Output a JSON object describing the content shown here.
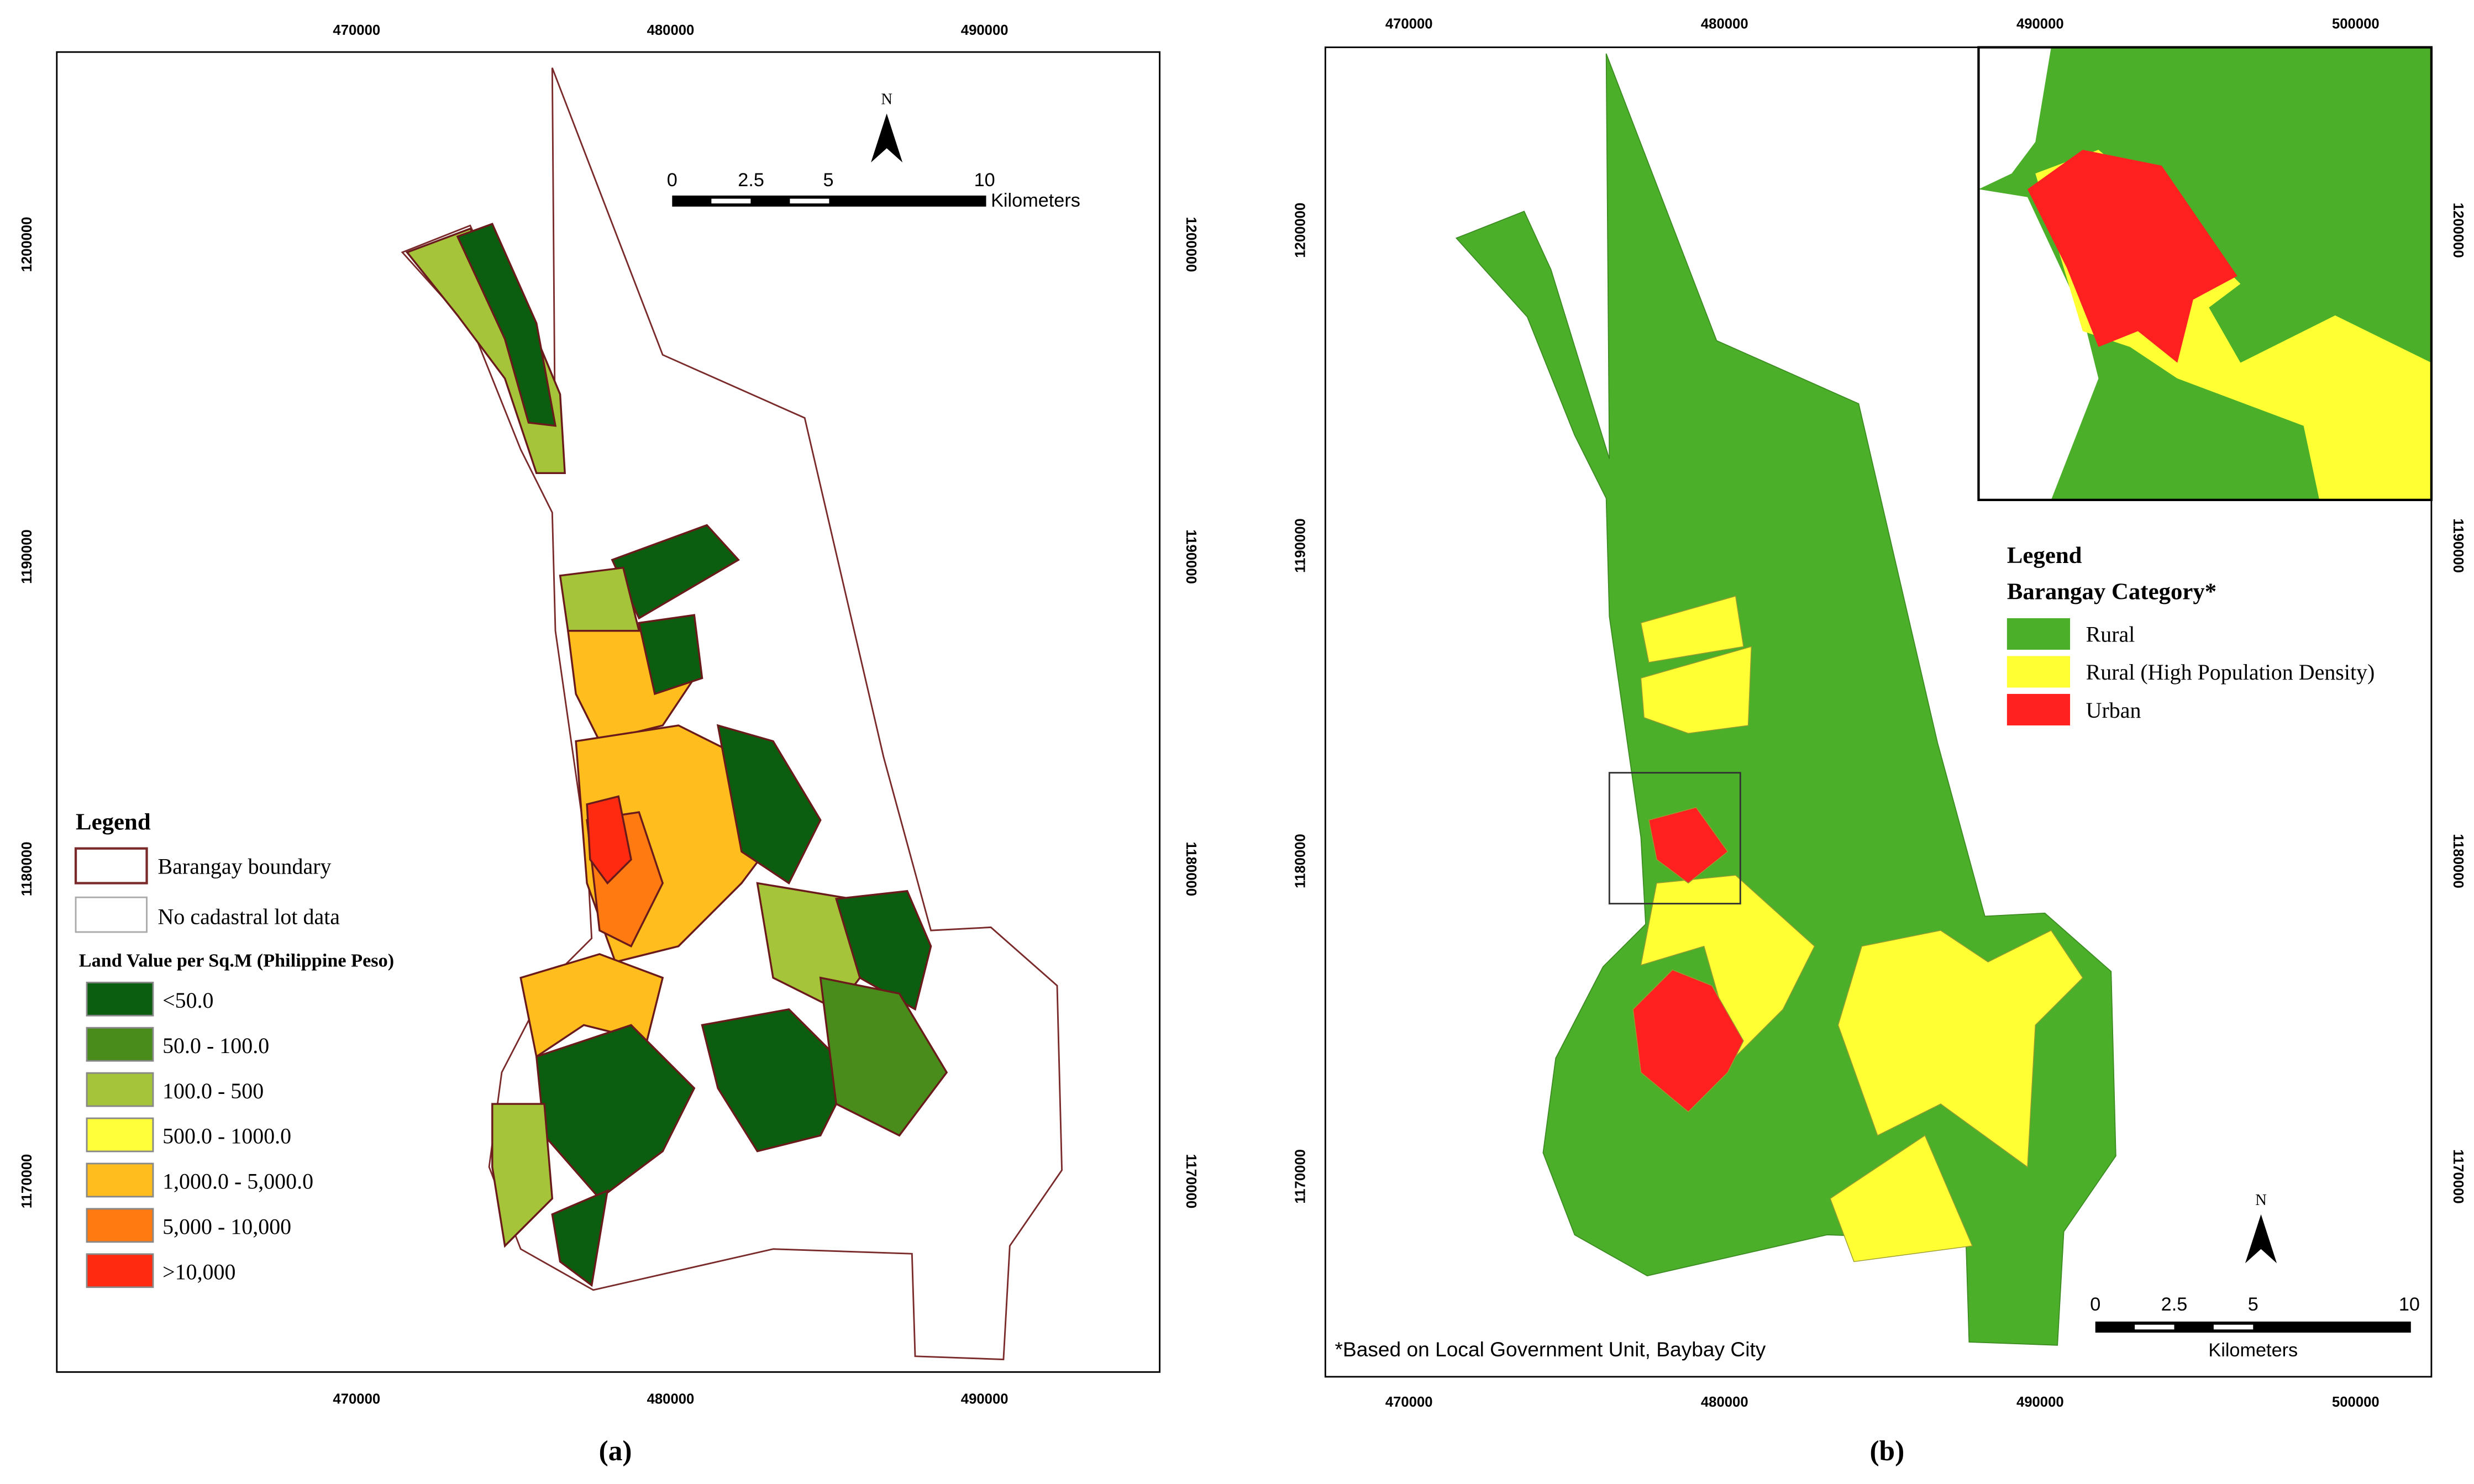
{
  "panel_a": {
    "x_ticks": [
      "470000",
      "480000",
      "490000"
    ],
    "y_ticks": [
      "1200000",
      "1190000",
      "1180000",
      "1170000"
    ],
    "legend": {
      "title": "Legend",
      "boundary": "Barangay boundary",
      "no_data": "No cadastral lot data",
      "subtitle": "Land Value per Sq.M (Philippine Peso)",
      "classes": [
        {
          "label": "<50.0",
          "color": "#0b5e0f"
        },
        {
          "label": "50.0 - 100.0",
          "color": "#4a8c1c"
        },
        {
          "label": "100.0 - 500",
          "color": "#a5c43a"
        },
        {
          "label": "500.0 - 1000.0",
          "color": "#ffff3a"
        },
        {
          "label": "1,000.0 - 5,000.0",
          "color": "#ffbe1e"
        },
        {
          "label": "5,000 - 10,000",
          "color": "#ff7a10"
        },
        {
          "label": ">10,000",
          "color": "#ff2a10"
        }
      ]
    },
    "scale": {
      "labels": [
        "0",
        "2.5",
        "5",
        "10"
      ],
      "unit": "Kilometers"
    },
    "north": "N",
    "caption": "(a)"
  },
  "panel_b": {
    "x_ticks": [
      "470000",
      "480000",
      "490000",
      "500000"
    ],
    "y_ticks": [
      "1200000",
      "1190000",
      "1180000",
      "1170000"
    ],
    "legend": {
      "title": "Legend",
      "subtitle": "Barangay Category*",
      "classes": [
        {
          "label": "Rural",
          "color": "#4caf2a"
        },
        {
          "label": "Rural (High Population Density)",
          "color": "#ffff33"
        },
        {
          "label": "Urban",
          "color": "#ff2020"
        }
      ]
    },
    "scale": {
      "labels": [
        "0",
        "2.5",
        "5",
        "10"
      ],
      "unit": "Kilometers"
    },
    "north": "N",
    "note": "*Based on Local Government Unit, Baybay City",
    "caption": "(b)"
  }
}
